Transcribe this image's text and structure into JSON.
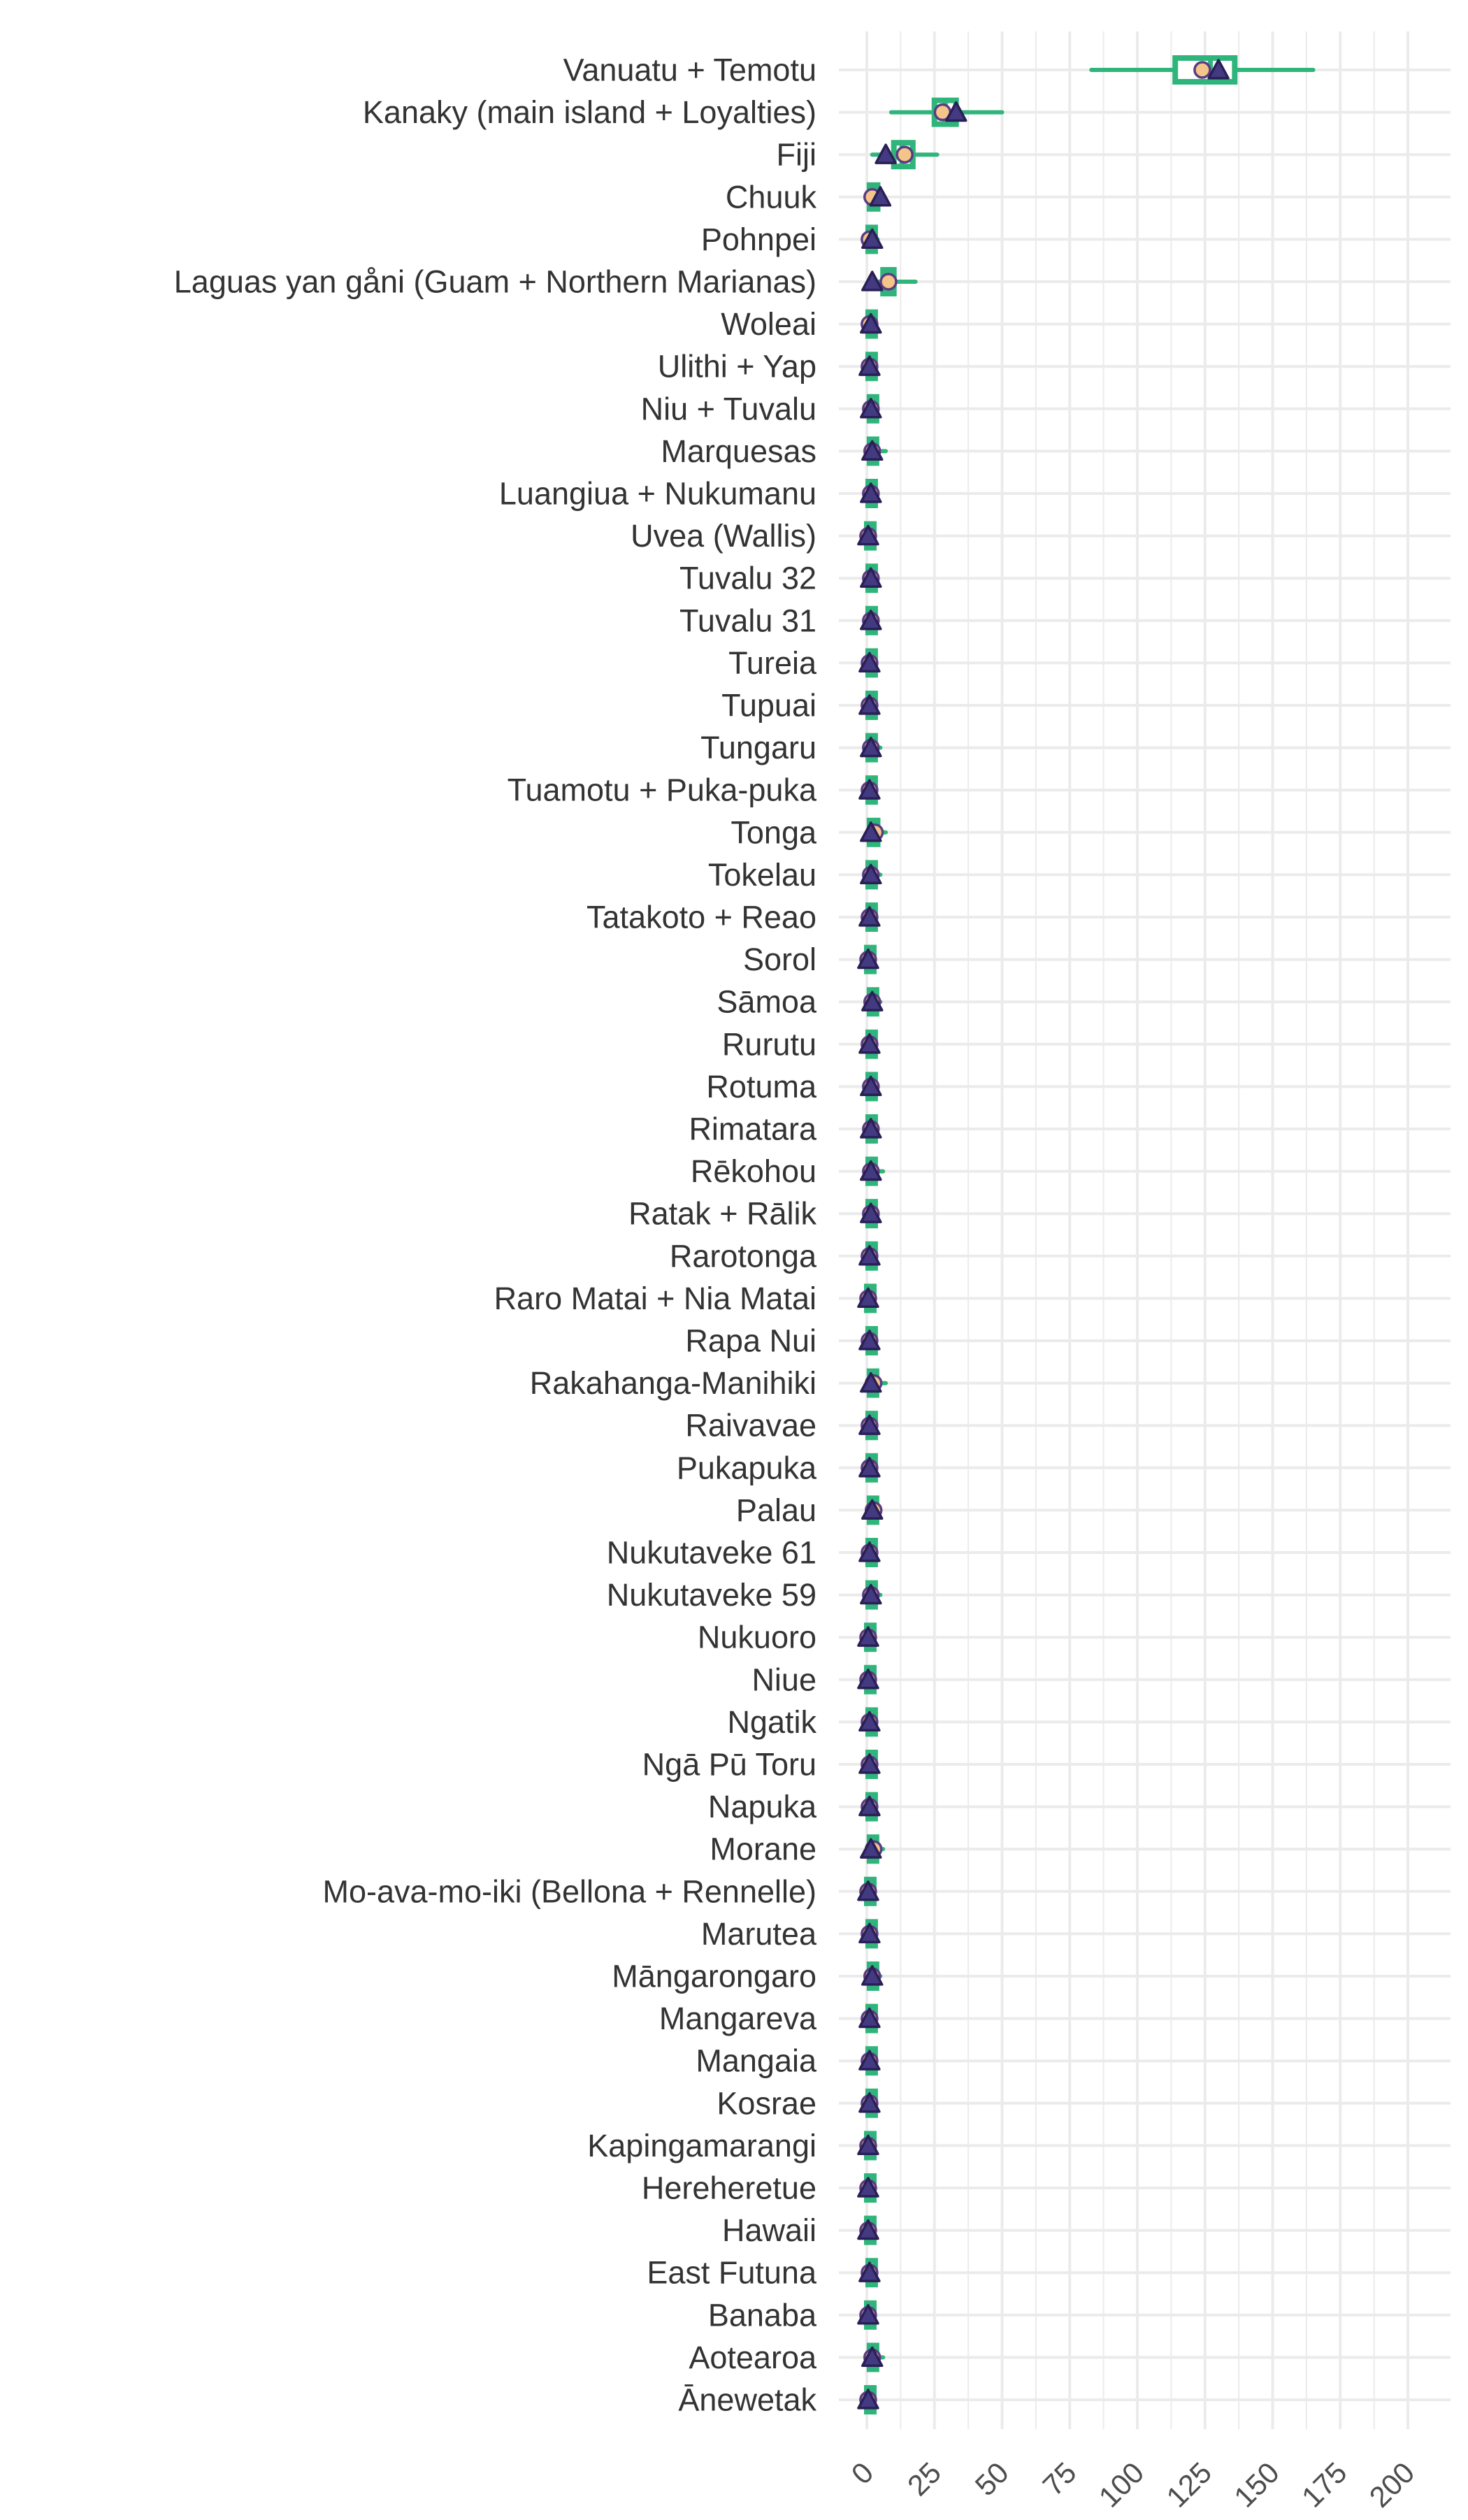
{
  "chart_data": {
    "type": "boxplot",
    "title": "",
    "xlabel": "",
    "ylabel": "",
    "xlim": [
      -10,
      208
    ],
    "x_ticks": [
      0,
      25,
      50,
      75,
      100,
      125,
      150,
      175,
      200
    ],
    "x_tick_labels": [
      "0",
      "25",
      "50",
      "75",
      "100",
      "125",
      "150",
      "175",
      "200"
    ],
    "grid": true,
    "legend": "none",
    "colors": {
      "box": "#2fb57b",
      "whisker": "#2fb57b",
      "circle_fill": "#f5c48a",
      "circle_stroke": "#5a3c82",
      "triangle_fill": "#433a82",
      "triangle_stroke": "#2a1f55",
      "grid": "#ebebeb",
      "text": "#333333"
    },
    "categories": [
      "Vanuatu + Temotu",
      "Kanaky (main island + Loyalties)",
      "Fiji",
      "Chuuk",
      "Pohnpei",
      "Laguas yan gåni (Guam + Northern Marianas)",
      "Woleai",
      "Ulithi + Yap",
      "Niu + Tuvalu",
      "Marquesas",
      "Luangiua + Nukumanu",
      "Uvea (Wallis)",
      "Tuvalu 32",
      "Tuvalu 31",
      "Tureia",
      "Tupuai",
      "Tungaru",
      "Tuamotu + Puka-puka",
      "Tonga",
      "Tokelau",
      "Tatakoto + Reao",
      "Sorol",
      "Sāmoa",
      "Rurutu",
      "Rotuma",
      "Rimatara",
      "Rēkohou",
      "Ratak + Rālik",
      "Rarotonga",
      "Raro Matai + Nia Matai",
      "Rapa Nui",
      "Rakahanga-Manihiki",
      "Raivavae",
      "Pukapuka",
      "Palau",
      "Nukutaveke 61",
      "Nukutaveke 59",
      "Nukuoro",
      "Niue",
      "Ngatik",
      "Ngā Pū Toru",
      "Napuka",
      "Morane",
      "Mo-ava-mo-iki (Bellona + Rennelle)",
      "Marutea",
      "Māngarongaro",
      "Mangareva",
      "Mangaia",
      "Kosrae",
      "Kapingamarangi",
      "Hereheretue",
      "Hawaii",
      "East Futuna",
      "Banaba",
      "Aotearoa",
      "Ānewetak"
    ],
    "boxes": [
      [
        83,
        114,
        127,
        136,
        165,
        124,
        130
      ],
      [
        9,
        25,
        29,
        33,
        50,
        28,
        33
      ],
      [
        2,
        10,
        13,
        17,
        26,
        14,
        7
      ],
      [
        0,
        1,
        2.5,
        4,
        6,
        2,
        5
      ],
      [
        0,
        0.5,
        1.5,
        2.5,
        4,
        1,
        2
      ],
      [
        1,
        6,
        8,
        10,
        18,
        8,
        2
      ],
      [
        0,
        0.5,
        1,
        2,
        3,
        1,
        1.5
      ],
      [
        0,
        0.5,
        1,
        2,
        3,
        1,
        1
      ],
      [
        0,
        1,
        1.5,
        2.5,
        4,
        1.5,
        1.5
      ],
      [
        0,
        1,
        2,
        3,
        7,
        2,
        2
      ],
      [
        0,
        0.5,
        1,
        2,
        4,
        1.5,
        1.5
      ],
      [
        0,
        0,
        0.5,
        1,
        2,
        0.5,
        0.5
      ],
      [
        0,
        0.5,
        1.5,
        2.5,
        4,
        1.5,
        1.5
      ],
      [
        0,
        0.5,
        1.5,
        2.5,
        4,
        1.5,
        1.5
      ],
      [
        0,
        0.5,
        1,
        2,
        3,
        1,
        1
      ],
      [
        0,
        0.5,
        1,
        2,
        3,
        1,
        1
      ],
      [
        0,
        0.5,
        1.5,
        2.5,
        5,
        1.5,
        1.5
      ],
      [
        0,
        0.5,
        1,
        2,
        3,
        1,
        1
      ],
      [
        0,
        1,
        2.5,
        4,
        7,
        3,
        1.5
      ],
      [
        0,
        0.5,
        1.5,
        2.5,
        5,
        1.5,
        1.5
      ],
      [
        0,
        0.5,
        1,
        2,
        3,
        1,
        1
      ],
      [
        0,
        0,
        0.5,
        1.5,
        3,
        0.5,
        0.5
      ],
      [
        0,
        1,
        2,
        3,
        5,
        2,
        2
      ],
      [
        0,
        0.5,
        1,
        2,
        3,
        1,
        1
      ],
      [
        0,
        0.5,
        1.5,
        2.5,
        4,
        1.5,
        1.5
      ],
      [
        0,
        0.5,
        1.5,
        2.5,
        4,
        1.5,
        1.5
      ],
      [
        0,
        0.5,
        1.5,
        2.5,
        6,
        1.5,
        1.5
      ],
      [
        0,
        0.5,
        1.5,
        2.5,
        4,
        1.5,
        1.5
      ],
      [
        0,
        0.5,
        1,
        2,
        3,
        1,
        1
      ],
      [
        0,
        0,
        0.5,
        1.5,
        3,
        0.5,
        0.5
      ],
      [
        0,
        0.5,
        1,
        2,
        3,
        1,
        1
      ],
      [
        0,
        1,
        2,
        3.5,
        7,
        2.5,
        1.5
      ],
      [
        0,
        0.5,
        1,
        2,
        3,
        1,
        1
      ],
      [
        0,
        0.5,
        1,
        2,
        3,
        1,
        1
      ],
      [
        0,
        1,
        2,
        3,
        5,
        2.5,
        2
      ],
      [
        0,
        0.5,
        1,
        2,
        3,
        1,
        1
      ],
      [
        0,
        0.5,
        1.5,
        2.5,
        5,
        1.5,
        1.5
      ],
      [
        0,
        0,
        0.5,
        1.5,
        3,
        0.5,
        0.5
      ],
      [
        0,
        0,
        0.5,
        1.5,
        3,
        0.5,
        0.5
      ],
      [
        0,
        0.5,
        1,
        2,
        3,
        1,
        1
      ],
      [
        0,
        0.5,
        1,
        2,
        3,
        1,
        1
      ],
      [
        0,
        0.5,
        1,
        2,
        3,
        1,
        1
      ],
      [
        0,
        1,
        2,
        3.5,
        6,
        2.5,
        1.5
      ],
      [
        0,
        0,
        0.5,
        1.5,
        3,
        0.5,
        0.5
      ],
      [
        0,
        0.5,
        1,
        2,
        3,
        1,
        1
      ],
      [
        0,
        1,
        2,
        3,
        5,
        2,
        2
      ],
      [
        0,
        0.5,
        1,
        2,
        3,
        1,
        1
      ],
      [
        0,
        0.5,
        1,
        2,
        3,
        1,
        1
      ],
      [
        0,
        0.5,
        1,
        2,
        3,
        1,
        1
      ],
      [
        0,
        0,
        0.5,
        1.5,
        3,
        0.5,
        0.5
      ],
      [
        0,
        0,
        0.5,
        1.5,
        3,
        0.5,
        0.5
      ],
      [
        0,
        0,
        0.5,
        1.5,
        3,
        0.5,
        0.5
      ],
      [
        0,
        0.5,
        1,
        2,
        3,
        1,
        1
      ],
      [
        0,
        0,
        0.5,
        1.5,
        3,
        0.5,
        0.5
      ],
      [
        0,
        1,
        2,
        3,
        6,
        2,
        2
      ],
      [
        0,
        0,
        0.5,
        1.5,
        3,
        0.5,
        0.5
      ]
    ],
    "box_fields": [
      "whisker_low",
      "q1",
      "median",
      "q3",
      "whisker_high",
      "circle_marker",
      "triangle_marker"
    ]
  }
}
